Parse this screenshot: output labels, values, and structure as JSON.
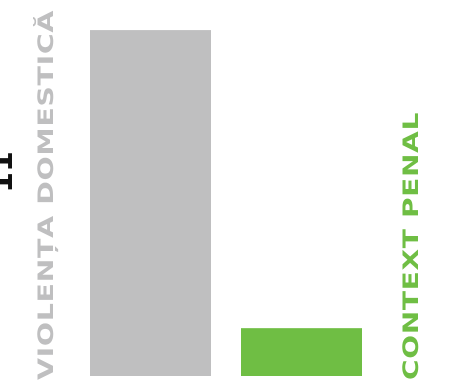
{
  "chart_data": {
    "type": "bar",
    "orientation": "vertical",
    "categories": [
      "VIOLENȚA DOMESTICĂ",
      "CONTEXT PENAL"
    ],
    "series": [
      {
        "values": [
          94,
          13
        ]
      }
    ],
    "leading_value_label": "11",
    "ylim": [
      0,
      100
    ],
    "grid": false,
    "legend": "none",
    "category_label_placement": "rotated-beside-bar",
    "colors": {
      "bars": [
        "#bfbfc0",
        "#6fbe44"
      ],
      "labels": [
        "#bfbfc0",
        "#6fbe44"
      ],
      "value_label": "#111111"
    }
  }
}
